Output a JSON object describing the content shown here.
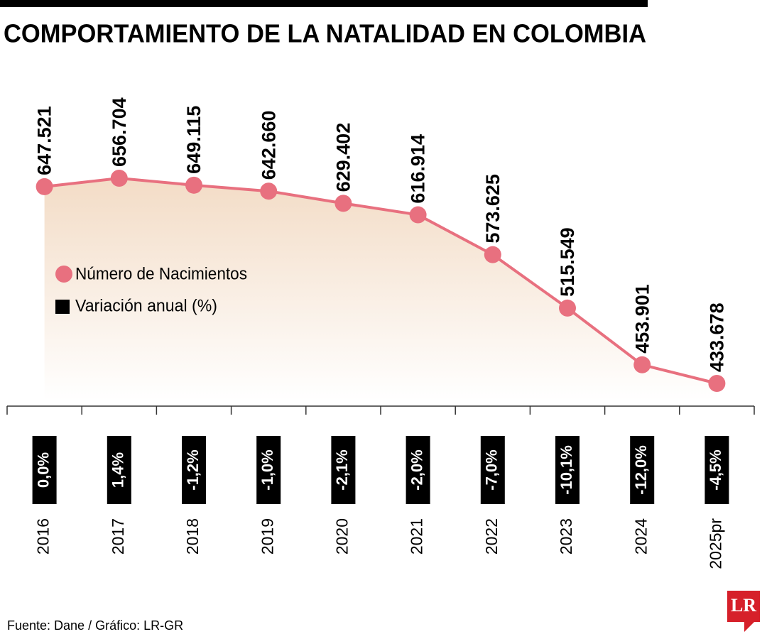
{
  "chart_data": {
    "type": "line",
    "title": "COMPORTAMIENTO DE LA NATALIDAD EN COLOMBIA",
    "categories": [
      "2016",
      "2017",
      "2018",
      "2019",
      "2020",
      "2021",
      "2022",
      "2023",
      "2024",
      "2025pr"
    ],
    "series": [
      {
        "name": "Número de Nacimientos",
        "color": "#e8707f",
        "values": [
          647521,
          656704,
          649115,
          642660,
          629402,
          616914,
          573625,
          515549,
          453901,
          433678
        ],
        "value_labels": [
          "647.521",
          "656.704",
          "649.115",
          "642.660",
          "629.402",
          "616.914",
          "573.625",
          "515.549",
          "453.901",
          "433.678"
        ]
      },
      {
        "name": "Variación anual (%)",
        "color": "#000000",
        "values": [
          0.0,
          1.4,
          -1.2,
          -1.0,
          -2.1,
          -2.0,
          -7.0,
          -10.1,
          -12.0,
          -4.5
        ],
        "value_labels": [
          "0,0%",
          "1,4%",
          "-1,2%",
          "-1,0%",
          "-2,1%",
          "-2,0%",
          "-7,0%",
          "-10,1%",
          "-12,0%",
          "-4,5%"
        ]
      }
    ],
    "area_color": "#f3dcc6",
    "source": "Fuente: Dane / Gráfico: LR-GR",
    "logo": "LR"
  }
}
